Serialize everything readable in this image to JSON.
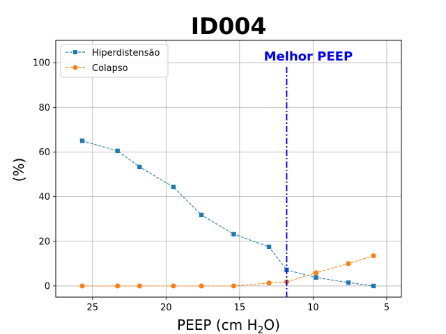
{
  "chart_data": {
    "type": "line",
    "title": "ID004",
    "xlabel": "PEEP (cm H2O)",
    "xlabel_parts": {
      "main": "PEEP (cm H",
      "sub": "2",
      "tail": "O)"
    },
    "ylabel": "(%)",
    "xlim": [
      27.5,
      4.0
    ],
    "ylim": [
      -5,
      110
    ],
    "x_reversed": true,
    "grid": true,
    "xticks": [
      25,
      20,
      15,
      10,
      5
    ],
    "yticks": [
      0,
      20,
      40,
      60,
      80,
      100
    ],
    "legend_position": "upper-left",
    "series": [
      {
        "name": "Hiperdistensão",
        "color": "#1f77b4",
        "marker": "square",
        "linestyle": "dashed",
        "points": [
          [
            25.7,
            65.0
          ],
          [
            23.3,
            60.5
          ],
          [
            21.8,
            53.3
          ],
          [
            19.5,
            44.3
          ],
          [
            17.6,
            31.8
          ],
          [
            15.4,
            23.2
          ],
          [
            13.0,
            17.5
          ],
          [
            11.8,
            7.2
          ],
          [
            9.8,
            3.8
          ],
          [
            7.6,
            1.5
          ],
          [
            5.9,
            0.0
          ]
        ]
      },
      {
        "name": "Colapso",
        "color": "#ff7f0e",
        "marker": "circle",
        "linestyle": "dashed",
        "points": [
          [
            25.7,
            0.0
          ],
          [
            23.3,
            0.0
          ],
          [
            21.8,
            0.0
          ],
          [
            19.5,
            0.0
          ],
          [
            17.6,
            0.0
          ],
          [
            15.4,
            0.0
          ],
          [
            13.0,
            1.3
          ],
          [
            11.8,
            1.8
          ],
          [
            9.8,
            5.9
          ],
          [
            7.6,
            10.0
          ],
          [
            5.9,
            13.5
          ]
        ]
      }
    ],
    "annotation": {
      "label": "Melhor PEEP",
      "x": 11.8,
      "color": "#0000ff",
      "linestyle": "dashdot"
    }
  }
}
